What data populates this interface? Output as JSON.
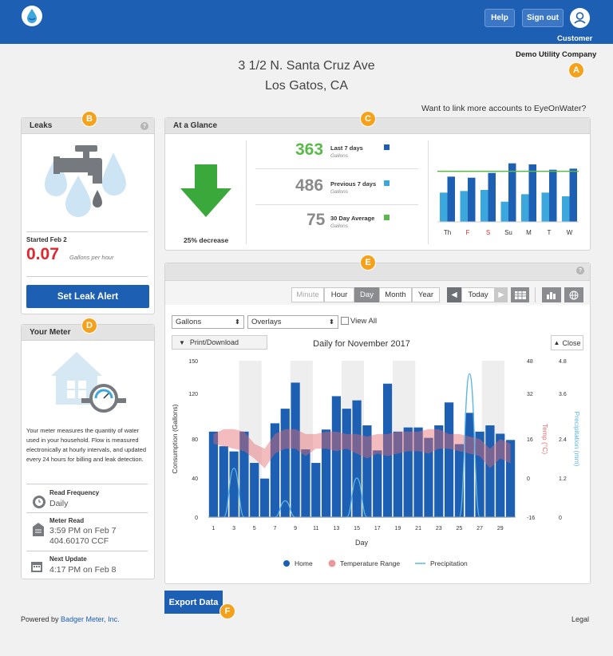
{
  "header": {
    "help": "Help",
    "signout": "Sign out",
    "user": "Customer",
    "company": "Demo Utility Company"
  },
  "address": {
    "line1": "3 1/2 N. Santa Cruz Ave",
    "line2": "Los Gatos, CA"
  },
  "link_accounts": "Want to link more accounts to EyeOnWater?",
  "markers": [
    "A",
    "B",
    "C",
    "D",
    "E",
    "F"
  ],
  "leaks": {
    "title": "Leaks",
    "started": "Started Feb 2",
    "rate": "0.07",
    "unit": "Gallons per hour",
    "button": "Set Leak Alert"
  },
  "meter": {
    "title": "Your Meter",
    "desc": "Your meter measures the quantity of water used in your household. Flow is measured electronically at hourly intervals, and updated every 24 hours for billing and leak detection.",
    "rows": [
      {
        "label": "Read Frequency",
        "value": "Daily"
      },
      {
        "label": "Meter Read",
        "value": "3:59 PM on Feb 7",
        "value2": "404.60170 CCF"
      },
      {
        "label": "Next Update",
        "value": "4:17 PM on Feb 8"
      }
    ]
  },
  "glance": {
    "title": "At a Glance",
    "decrease": "25% decrease",
    "stats": [
      {
        "value": "363",
        "label": "Last 7 days",
        "unit": "Gallons",
        "color": "#1d5fb3",
        "vcolor": "#5bb84a"
      },
      {
        "value": "486",
        "label": "Previous 7 days",
        "unit": "Gallons",
        "color": "#3ba7dc",
        "vcolor": "#8a8a8a"
      },
      {
        "value": "75",
        "label": "30 Day Average",
        "unit": "Gallons",
        "color": "#5bb84a",
        "vcolor": "#8a8a8a"
      }
    ]
  },
  "controls": {
    "tabs": [
      "Minute",
      "Hour",
      "Day",
      "Month",
      "Year"
    ],
    "active": "Day",
    "today": "Today",
    "units": "Gallons",
    "overlays": "Overlays",
    "view_all": "View All",
    "print": "Print/Download",
    "close": "Close"
  },
  "export": "Export Data",
  "footer": {
    "powered_prefix": "Powered by ",
    "powered_link": "Badger Meter, Inc.",
    "legal": "Legal"
  },
  "colors": {
    "brand": "#1d5fb3",
    "bar_dark": "#1d5fb3",
    "bar_light": "#3ba7dc",
    "avg_line": "#5bb84a",
    "temp_band": "#e56a72",
    "precip": "#5ab6e6",
    "orange": "#f5a11c"
  },
  "chart_data": [
    {
      "type": "bar",
      "categories": [
        "Th",
        "F",
        "S",
        "Su",
        "M",
        "T",
        "W"
      ],
      "series": [
        {
          "values": [
            55,
            58,
            60,
            38,
            52,
            55,
            48
          ]
        },
        {
          "values": [
            85,
            83,
            92,
            110,
            108,
            98,
            100
          ]
        }
      ],
      "avg_line": 95,
      "ylim": [
        0,
        120
      ]
    },
    {
      "type": "bar",
      "title": "Daily for November 2017",
      "xlabel": "Day",
      "ylabel": "Consumption (Gallons)",
      "y2label": "Temp (°C)",
      "y3label": "Precipitation (mm)",
      "x": [
        1,
        2,
        3,
        4,
        5,
        6,
        7,
        8,
        9,
        10,
        11,
        12,
        13,
        14,
        15,
        16,
        17,
        18,
        19,
        20,
        21,
        22,
        23,
        24,
        25,
        26,
        27,
        28,
        29,
        30
      ],
      "xticks": [
        "1",
        "3",
        "5",
        "7",
        "9",
        "11",
        "13",
        "15",
        "17",
        "19",
        "21",
        "23",
        "25",
        "27",
        "29"
      ],
      "values": [
        82,
        68,
        63,
        82,
        52,
        37,
        90,
        104,
        129,
        65,
        52,
        84,
        116,
        104,
        112,
        88,
        64,
        128,
        82,
        86,
        86,
        76,
        88,
        110,
        70,
        100,
        82,
        88,
        80,
        74
      ],
      "ylim": [
        0,
        150
      ],
      "yticks": [
        "150",
        "120",
        "80",
        "40",
        "0"
      ],
      "temp_ticks": [
        "48",
        "32",
        "16",
        "0",
        "-16"
      ],
      "precip_ticks": [
        "4.8",
        "3.6",
        "2.4",
        "1.2",
        "0"
      ],
      "temp_low": [
        14,
        13,
        12,
        11,
        8,
        4,
        10,
        12,
        12,
        9,
        12,
        12,
        11,
        12,
        10,
        8,
        10,
        9,
        10,
        11,
        11,
        10,
        12,
        12,
        11,
        10,
        9,
        4,
        8,
        6
      ],
      "temp_high": [
        18,
        20,
        20,
        19,
        14,
        12,
        18,
        20,
        20,
        18,
        18,
        19,
        19,
        18,
        18,
        17,
        18,
        18,
        19,
        19,
        19,
        20,
        20,
        18,
        18,
        17,
        16,
        12,
        16,
        14
      ],
      "precip": [
        0,
        0,
        1.5,
        0,
        0,
        0,
        0,
        0.5,
        0,
        0,
        0,
        0,
        0,
        0,
        1.2,
        0,
        0,
        0,
        0,
        0,
        0,
        0,
        0,
        0,
        0,
        4.4,
        0,
        0,
        0,
        0
      ],
      "legend": [
        "Home",
        "Temperature Range",
        "Precipitation"
      ]
    }
  ]
}
